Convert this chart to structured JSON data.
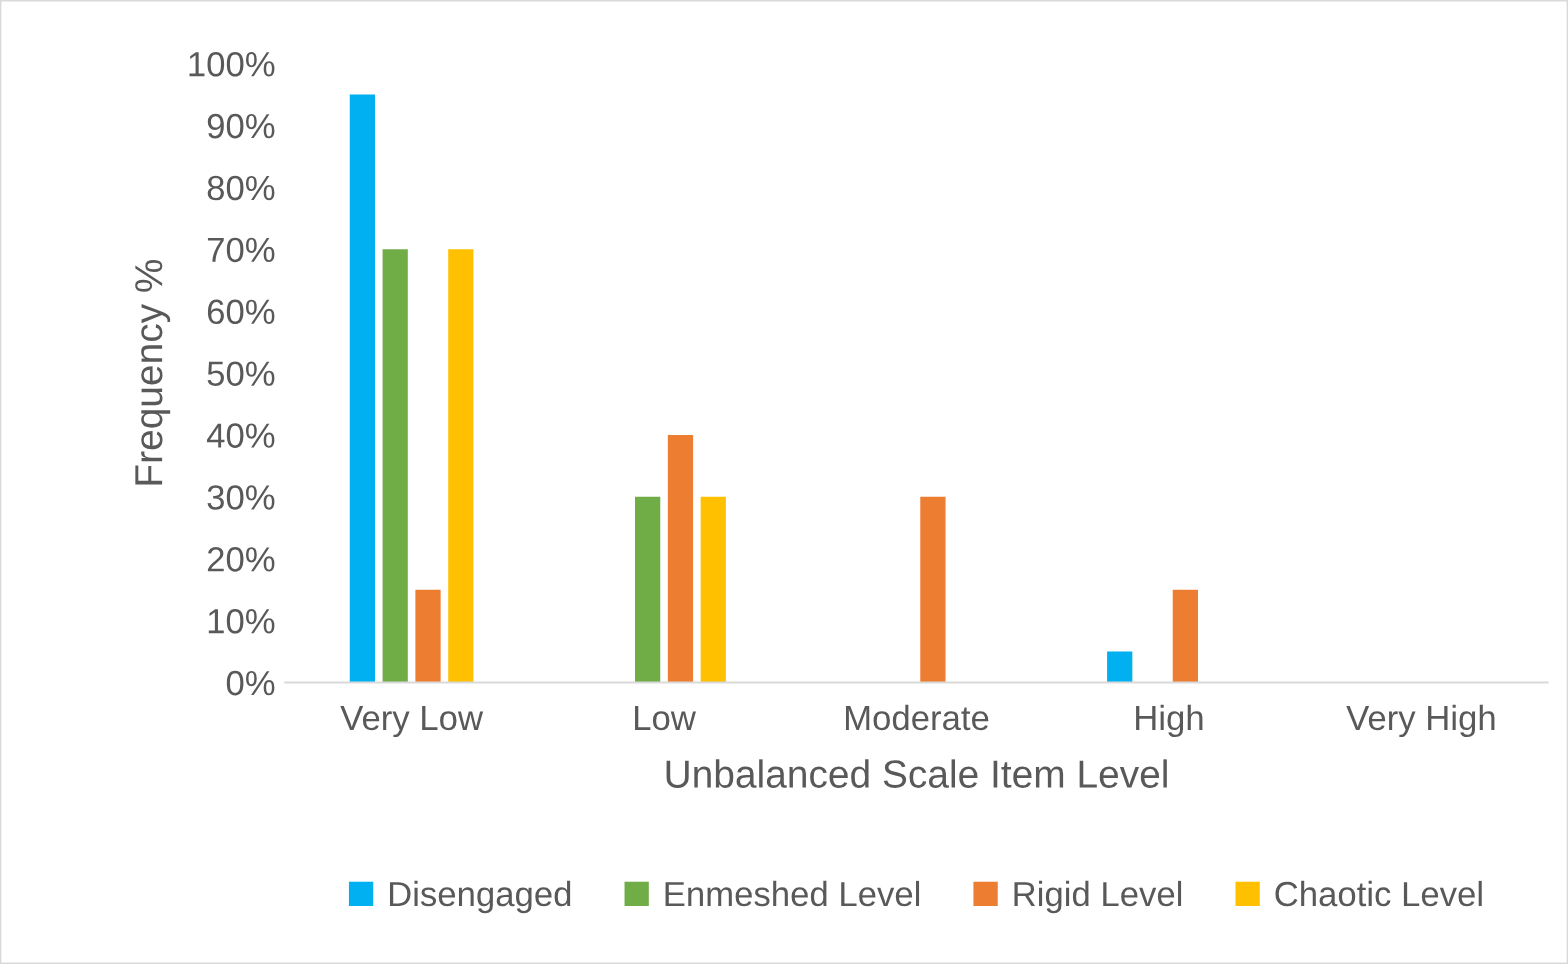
{
  "chart_data": {
    "type": "bar",
    "xlabel": "Unbalanced Scale Item Level",
    "ylabel": "Frequency %",
    "categories": [
      "Very Low",
      "Low",
      "Moderate",
      "High",
      "Very High"
    ],
    "series": [
      {
        "name": "Disengaged",
        "color": "#00b0f0",
        "values": [
          95,
          0,
          0,
          5,
          0
        ]
      },
      {
        "name": "Enmeshed Level",
        "color": "#70ad47",
        "values": [
          70,
          30,
          0,
          0,
          0
        ]
      },
      {
        "name": "Rigid Level",
        "color": "#ed7d31",
        "values": [
          15,
          40,
          30,
          15,
          0
        ]
      },
      {
        "name": "Chaotic Level",
        "color": "#ffc000",
        "values": [
          70,
          30,
          0,
          0,
          0
        ]
      }
    ],
    "ylim": [
      0,
      100
    ],
    "yticks": [
      {
        "value": 0,
        "label": "0%"
      },
      {
        "value": 10,
        "label": "10%"
      },
      {
        "value": 20,
        "label": "20%"
      },
      {
        "value": 30,
        "label": "30%"
      },
      {
        "value": 40,
        "label": "40%"
      },
      {
        "value": 50,
        "label": "50%"
      },
      {
        "value": 60,
        "label": "60%"
      },
      {
        "value": 70,
        "label": "70%"
      },
      {
        "value": 80,
        "label": "80%"
      },
      {
        "value": 90,
        "label": "90%"
      },
      {
        "value": 100,
        "label": "100%"
      }
    ],
    "grid": false,
    "legend": "bottom"
  }
}
